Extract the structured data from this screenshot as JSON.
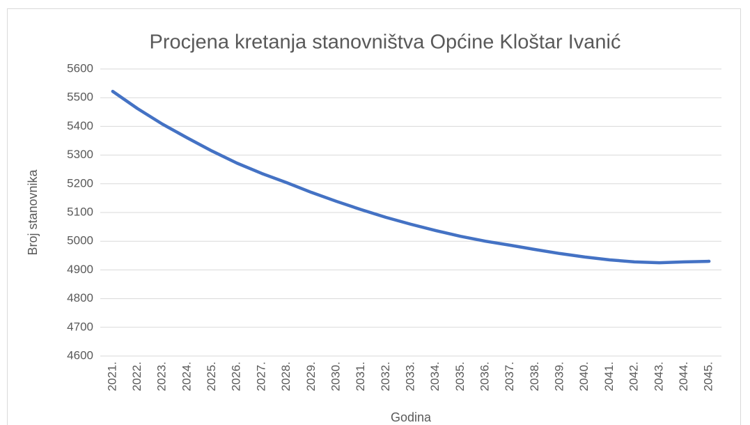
{
  "chart_data": {
    "type": "line",
    "title": "Procjena kretanja stanovništva Općine Kloštar Ivanić",
    "x_label": "Godina",
    "y_label": "Broj stanovnika",
    "categories": [
      "2021.",
      "2022.",
      "2023.",
      "2024.",
      "2025.",
      "2026.",
      "2027.",
      "2028.",
      "2029.",
      "2030.",
      "2031.",
      "2032.",
      "2033.",
      "2034.",
      "2035.",
      "2036.",
      "2037.",
      "2038.",
      "2039.",
      "2040.",
      "2041.",
      "2042.",
      "2043.",
      "2044.",
      "2045."
    ],
    "series": [
      {
        "name": "Broj stanovnika",
        "color": "#4472c4",
        "values": [
          5522,
          5462,
          5408,
          5360,
          5314,
          5272,
          5236,
          5204,
          5170,
          5139,
          5110,
          5083,
          5059,
          5037,
          5017,
          5000,
          4986,
          4971,
          4957,
          4945,
          4935,
          4928,
          4925,
          4928,
          4930
        ]
      }
    ],
    "ylim": [
      4600,
      5600
    ],
    "yticks": [
      4600,
      4700,
      4800,
      4900,
      5000,
      5100,
      5200,
      5300,
      5400,
      5500,
      5600
    ],
    "grid": true
  }
}
